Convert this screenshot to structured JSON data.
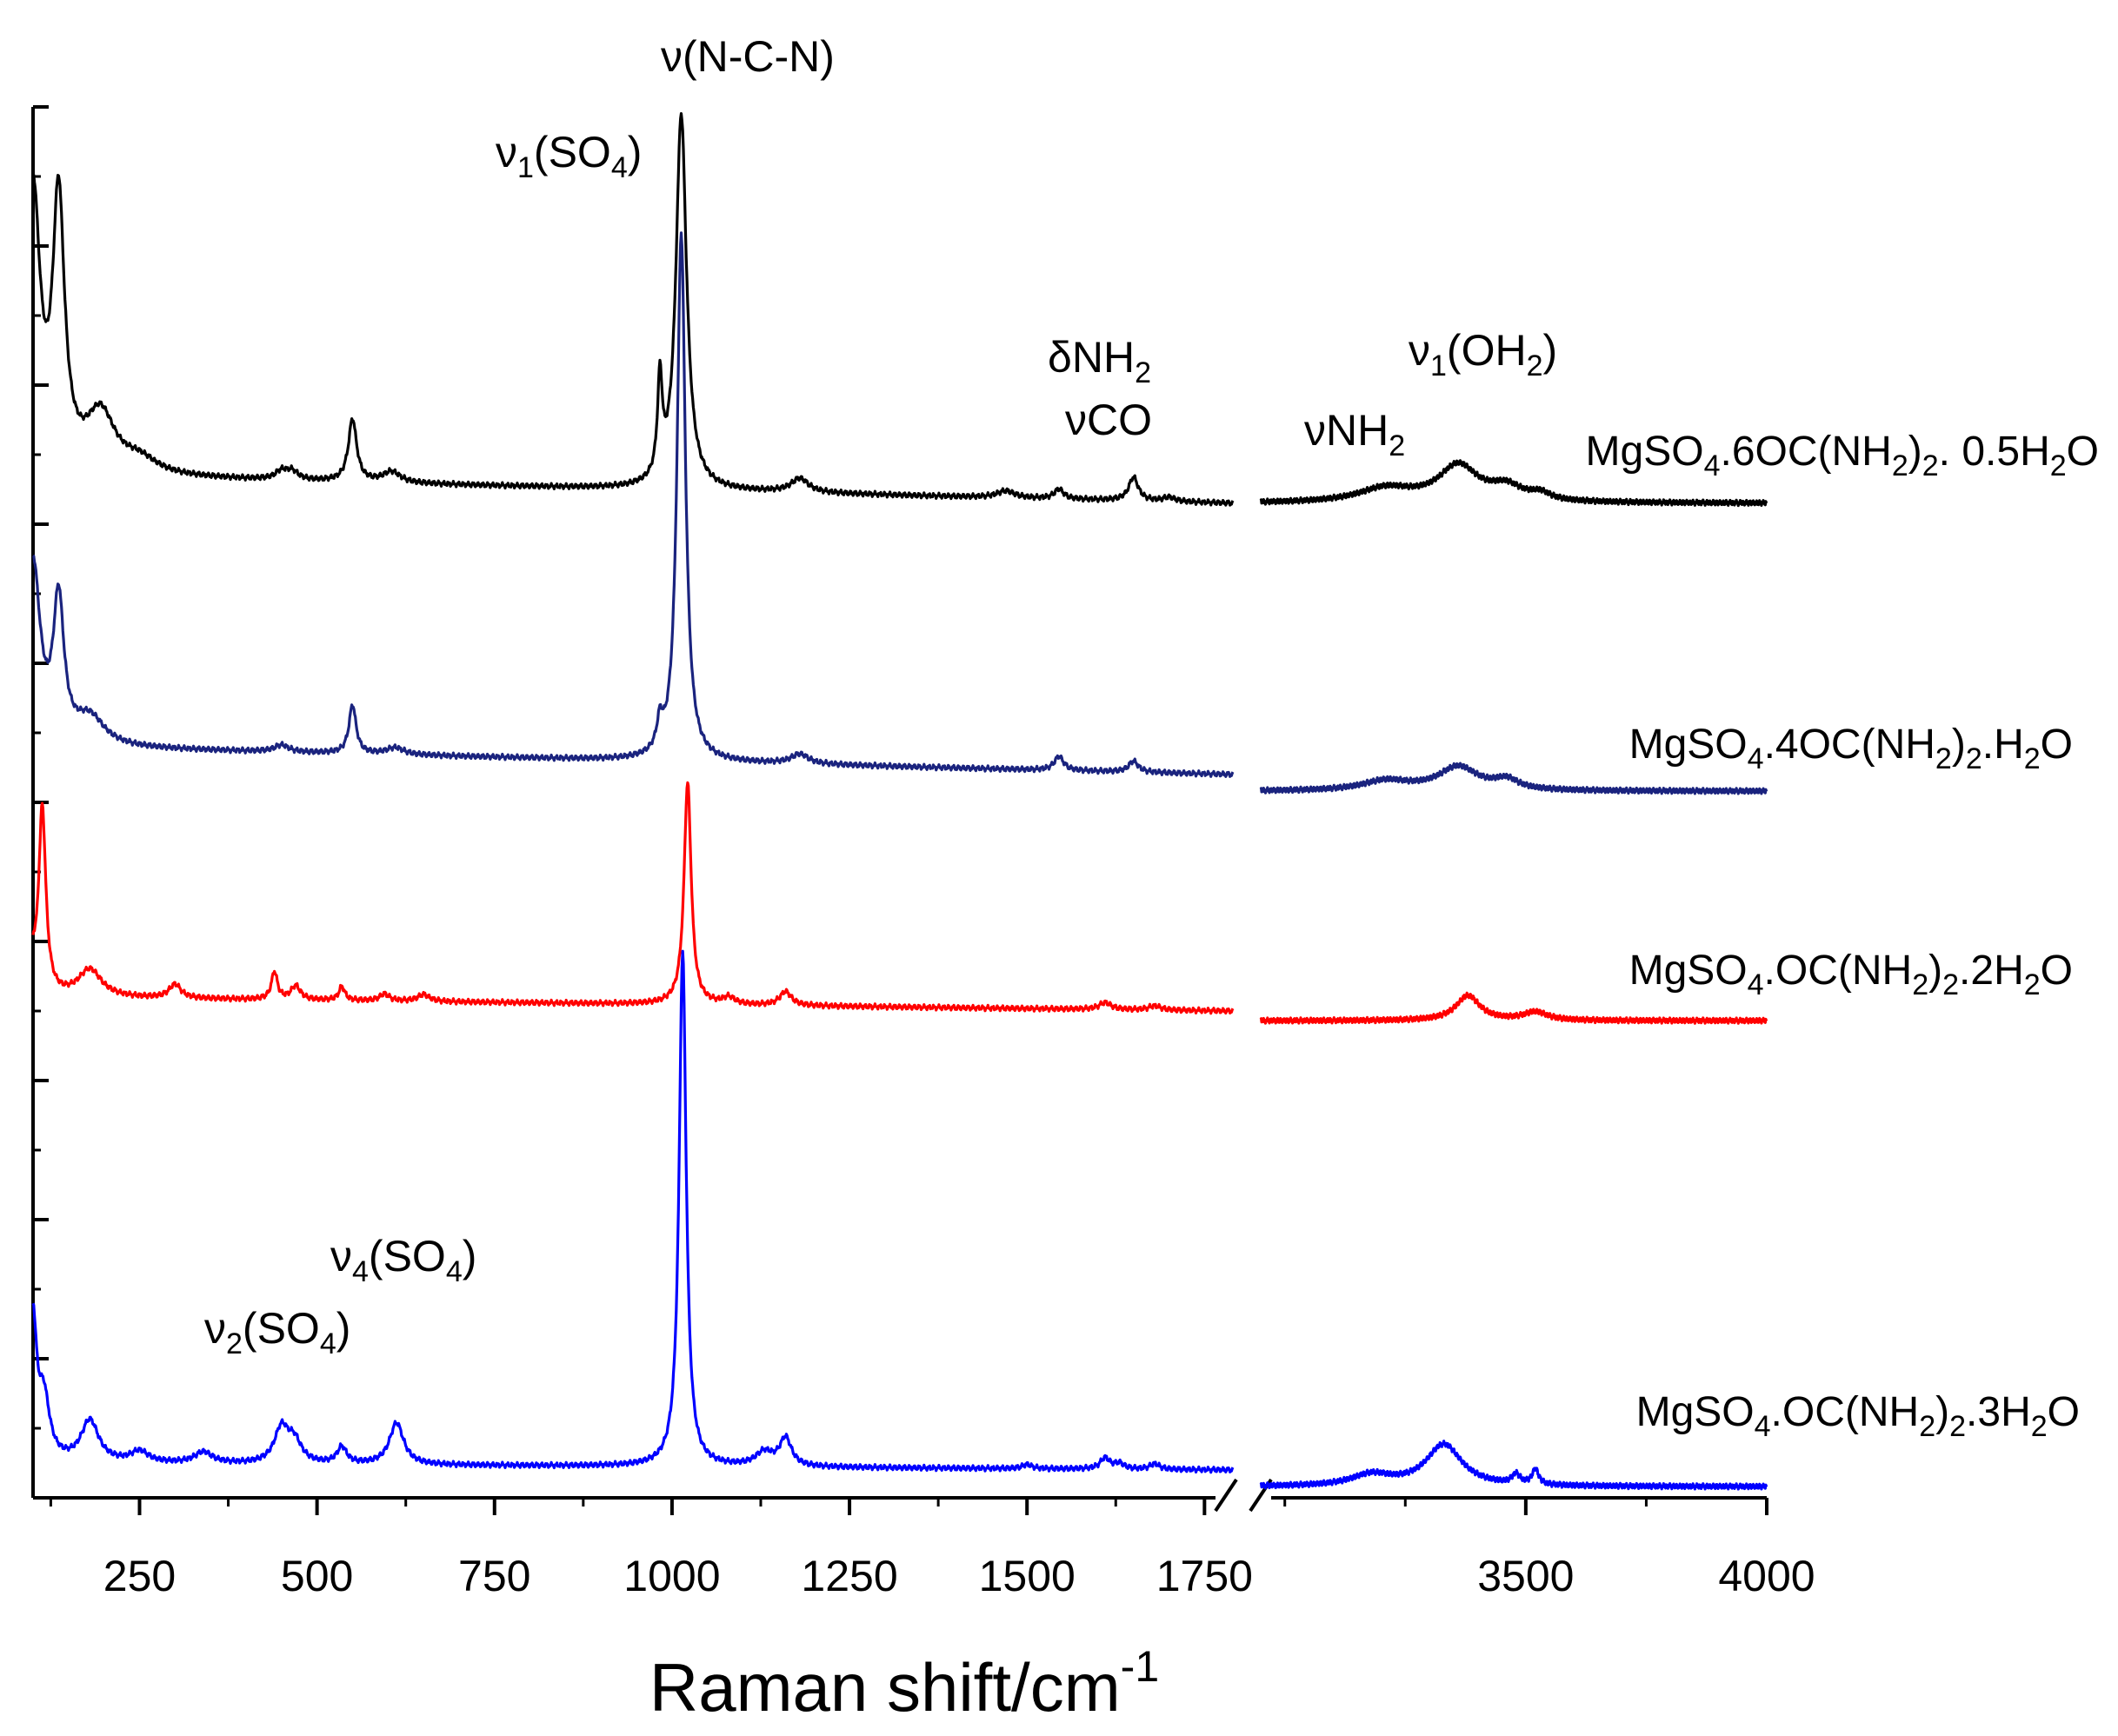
{
  "chart_data": {
    "type": "line",
    "title": "",
    "xlabel": "Raman shift/cm",
    "xlabel_sup": "-1",
    "ylabel": "",
    "xlim_left": [
      100,
      1790
    ],
    "xlim_right": [
      2950,
      4000
    ],
    "x_ticks": [
      {
        "value": 250,
        "label": "250"
      },
      {
        "value": 500,
        "label": "500"
      },
      {
        "value": 750,
        "label": "750"
      },
      {
        "value": 1000,
        "label": "1000"
      },
      {
        "value": 1250,
        "label": "1250"
      },
      {
        "value": 1500,
        "label": "1500"
      },
      {
        "value": 1750,
        "label": "1750"
      },
      {
        "value": 3500,
        "label": "3500"
      },
      {
        "value": 4000,
        "label": "4000"
      }
    ],
    "axis_break": true,
    "ylim": [
      0,
      10
    ],
    "y_ticks": [
      0,
      1,
      2,
      3,
      4,
      5,
      6,
      7,
      8,
      9,
      10
    ],
    "series": [
      {
        "name": "MgSO4.6OC(NH2)2. 0.5H2O",
        "color": "#000000",
        "offset": 7.15,
        "baseline_left": 0.2,
        "baseline_right": 0.12,
        "peaks": [
          {
            "x": 100,
            "h": 2.0,
            "w": 12
          },
          {
            "x": 136,
            "h": 1.9,
            "w": 10
          },
          {
            "x": 195,
            "h": 0.42,
            "w": 25
          },
          {
            "x": 250,
            "h": 0.1,
            "w": 30
          },
          {
            "x": 450,
            "h": 0.06,
            "w": 10
          },
          {
            "x": 465,
            "h": 0.06,
            "w": 10
          },
          {
            "x": 550,
            "h": 0.45,
            "w": 7
          },
          {
            "x": 605,
            "h": 0.08,
            "w": 15
          },
          {
            "x": 983,
            "h": 0.7,
            "w": 4
          },
          {
            "x": 1013,
            "h": 2.7,
            "w": 9
          },
          {
            "x": 1180,
            "h": 0.1,
            "w": 15
          },
          {
            "x": 1470,
            "h": 0.05,
            "w": 15
          },
          {
            "x": 1545,
            "h": 0.07,
            "w": 8
          },
          {
            "x": 1650,
            "h": 0.17,
            "w": 8
          },
          {
            "x": 1700,
            "h": 0.03,
            "w": 10
          },
          {
            "x": 3210,
            "h": 0.1,
            "w": 70
          },
          {
            "x": 3360,
            "h": 0.26,
            "w": 50
          },
          {
            "x": 3460,
            "h": 0.1,
            "w": 40
          },
          {
            "x": 3530,
            "h": 0.05,
            "w": 25
          }
        ]
      },
      {
        "name": "MgSO4.4OC(NH2)2.H2O",
        "color": "#1a237e",
        "offset": 5.2,
        "baseline_left": 0.2,
        "baseline_right": 0.0,
        "peaks": [
          {
            "x": 100,
            "h": 1.3,
            "w": 12
          },
          {
            "x": 136,
            "h": 1.0,
            "w": 9
          },
          {
            "x": 180,
            "h": 0.2,
            "w": 25
          },
          {
            "x": 450,
            "h": 0.05,
            "w": 12
          },
          {
            "x": 550,
            "h": 0.35,
            "w": 6
          },
          {
            "x": 610,
            "h": 0.05,
            "w": 15
          },
          {
            "x": 983,
            "h": 0.2,
            "w": 5
          },
          {
            "x": 1013,
            "h": 3.8,
            "w": 7
          },
          {
            "x": 1180,
            "h": 0.07,
            "w": 15
          },
          {
            "x": 1545,
            "h": 0.1,
            "w": 8
          },
          {
            "x": 1650,
            "h": 0.08,
            "w": 8
          },
          {
            "x": 3210,
            "h": 0.07,
            "w": 60
          },
          {
            "x": 3360,
            "h": 0.17,
            "w": 50
          },
          {
            "x": 3460,
            "h": 0.07,
            "w": 30
          }
        ]
      },
      {
        "name": "MgSO4.OC(NH2)2.2H2O",
        "color": "#ff0000",
        "offset": 3.5,
        "baseline_left": 0.1,
        "baseline_right": 0.05,
        "peaks": [
          {
            "x": 100,
            "h": 0.2,
            "w": 5
          },
          {
            "x": 113,
            "h": 1.35,
            "w": 6
          },
          {
            "x": 180,
            "h": 0.2,
            "w": 20
          },
          {
            "x": 300,
            "h": 0.1,
            "w": 10
          },
          {
            "x": 440,
            "h": 0.2,
            "w": 5
          },
          {
            "x": 470,
            "h": 0.1,
            "w": 8
          },
          {
            "x": 535,
            "h": 0.1,
            "w": 5
          },
          {
            "x": 595,
            "h": 0.05,
            "w": 8
          },
          {
            "x": 650,
            "h": 0.05,
            "w": 10
          },
          {
            "x": 1022,
            "h": 1.6,
            "w": 6
          },
          {
            "x": 1080,
            "h": 0.05,
            "w": 10
          },
          {
            "x": 1160,
            "h": 0.1,
            "w": 10
          },
          {
            "x": 1610,
            "h": 0.05,
            "w": 10
          },
          {
            "x": 1680,
            "h": 0.03,
            "w": 10
          },
          {
            "x": 3380,
            "h": 0.18,
            "w": 30
          },
          {
            "x": 3520,
            "h": 0.06,
            "w": 30
          }
        ]
      },
      {
        "name": "MgSO4.OC(NH2)2.3H2O",
        "color": "#0000ff",
        "offset": 0.2,
        "baseline_left": 0.05,
        "baseline_right": 0.0,
        "peaks": [
          {
            "x": 100,
            "h": 1.0,
            "w": 6
          },
          {
            "x": 115,
            "h": 0.45,
            "w": 10
          },
          {
            "x": 180,
            "h": 0.3,
            "w": 15
          },
          {
            "x": 250,
            "h": 0.08,
            "w": 15
          },
          {
            "x": 340,
            "h": 0.08,
            "w": 15
          },
          {
            "x": 450,
            "h": 0.25,
            "w": 12
          },
          {
            "x": 468,
            "h": 0.15,
            "w": 12
          },
          {
            "x": 535,
            "h": 0.12,
            "w": 8
          },
          {
            "x": 612,
            "h": 0.3,
            "w": 12
          },
          {
            "x": 1015,
            "h": 3.7,
            "w": 6
          },
          {
            "x": 1130,
            "h": 0.1,
            "w": 15
          },
          {
            "x": 1160,
            "h": 0.2,
            "w": 10
          },
          {
            "x": 1500,
            "h": 0.03,
            "w": 8
          },
          {
            "x": 1610,
            "h": 0.08,
            "w": 8
          },
          {
            "x": 1630,
            "h": 0.04,
            "w": 8
          },
          {
            "x": 1680,
            "h": 0.04,
            "w": 8
          },
          {
            "x": 3180,
            "h": 0.08,
            "w": 50
          },
          {
            "x": 3330,
            "h": 0.3,
            "w": 45
          },
          {
            "x": 3480,
            "h": 0.07,
            "w": 10
          },
          {
            "x": 3520,
            "h": 0.11,
            "w": 8
          }
        ]
      }
    ],
    "peak_annotations": [
      {
        "id": "nu-ncn",
        "pre": "ν",
        "main": "(N-C-N)",
        "sub": "",
        "post": ""
      },
      {
        "id": "nu1-so4",
        "pre": "ν",
        "main": "(SO",
        "sub": "1",
        "sub2": "4",
        "post": ")"
      },
      {
        "id": "delta-nh2",
        "pre": "δ",
        "main": "NH",
        "sub": "",
        "sub2": "2",
        "post": ""
      },
      {
        "id": "nu-co",
        "pre": "ν",
        "main": "CO",
        "sub": "",
        "post": ""
      },
      {
        "id": "nu1-oh2",
        "pre": "ν",
        "main": "(OH",
        "sub": "1",
        "sub2": "2",
        "post": ")"
      },
      {
        "id": "nu-nh2",
        "pre": "ν",
        "main": "NH",
        "sub": "",
        "sub2": "2",
        "post": ""
      },
      {
        "id": "nu4-so4",
        "pre": "ν",
        "main": "(SO",
        "sub": "4",
        "sub2": "4",
        "post": ")"
      },
      {
        "id": "nu2-so4",
        "pre": "ν",
        "main": "(SO",
        "sub": "2",
        "sub2": "4",
        "post": ")"
      }
    ],
    "sample_labels": [
      {
        "parts": [
          "MgSO",
          "4",
          ".6OC(NH",
          "2",
          ")",
          "2",
          ". 0.5H",
          "2",
          "O"
        ]
      },
      {
        "parts": [
          "MgSO",
          "4",
          ".4OC(NH",
          "2",
          ")",
          "2",
          ".H",
          "2",
          "O"
        ]
      },
      {
        "parts": [
          "MgSO",
          "4",
          ".OC(NH",
          "2",
          ")",
          "2",
          ".2H",
          "2",
          "O"
        ]
      },
      {
        "parts": [
          "MgSO",
          "4",
          ".OC(NH",
          "2",
          ")",
          "2",
          ".3H",
          "2",
          "O"
        ]
      }
    ]
  }
}
